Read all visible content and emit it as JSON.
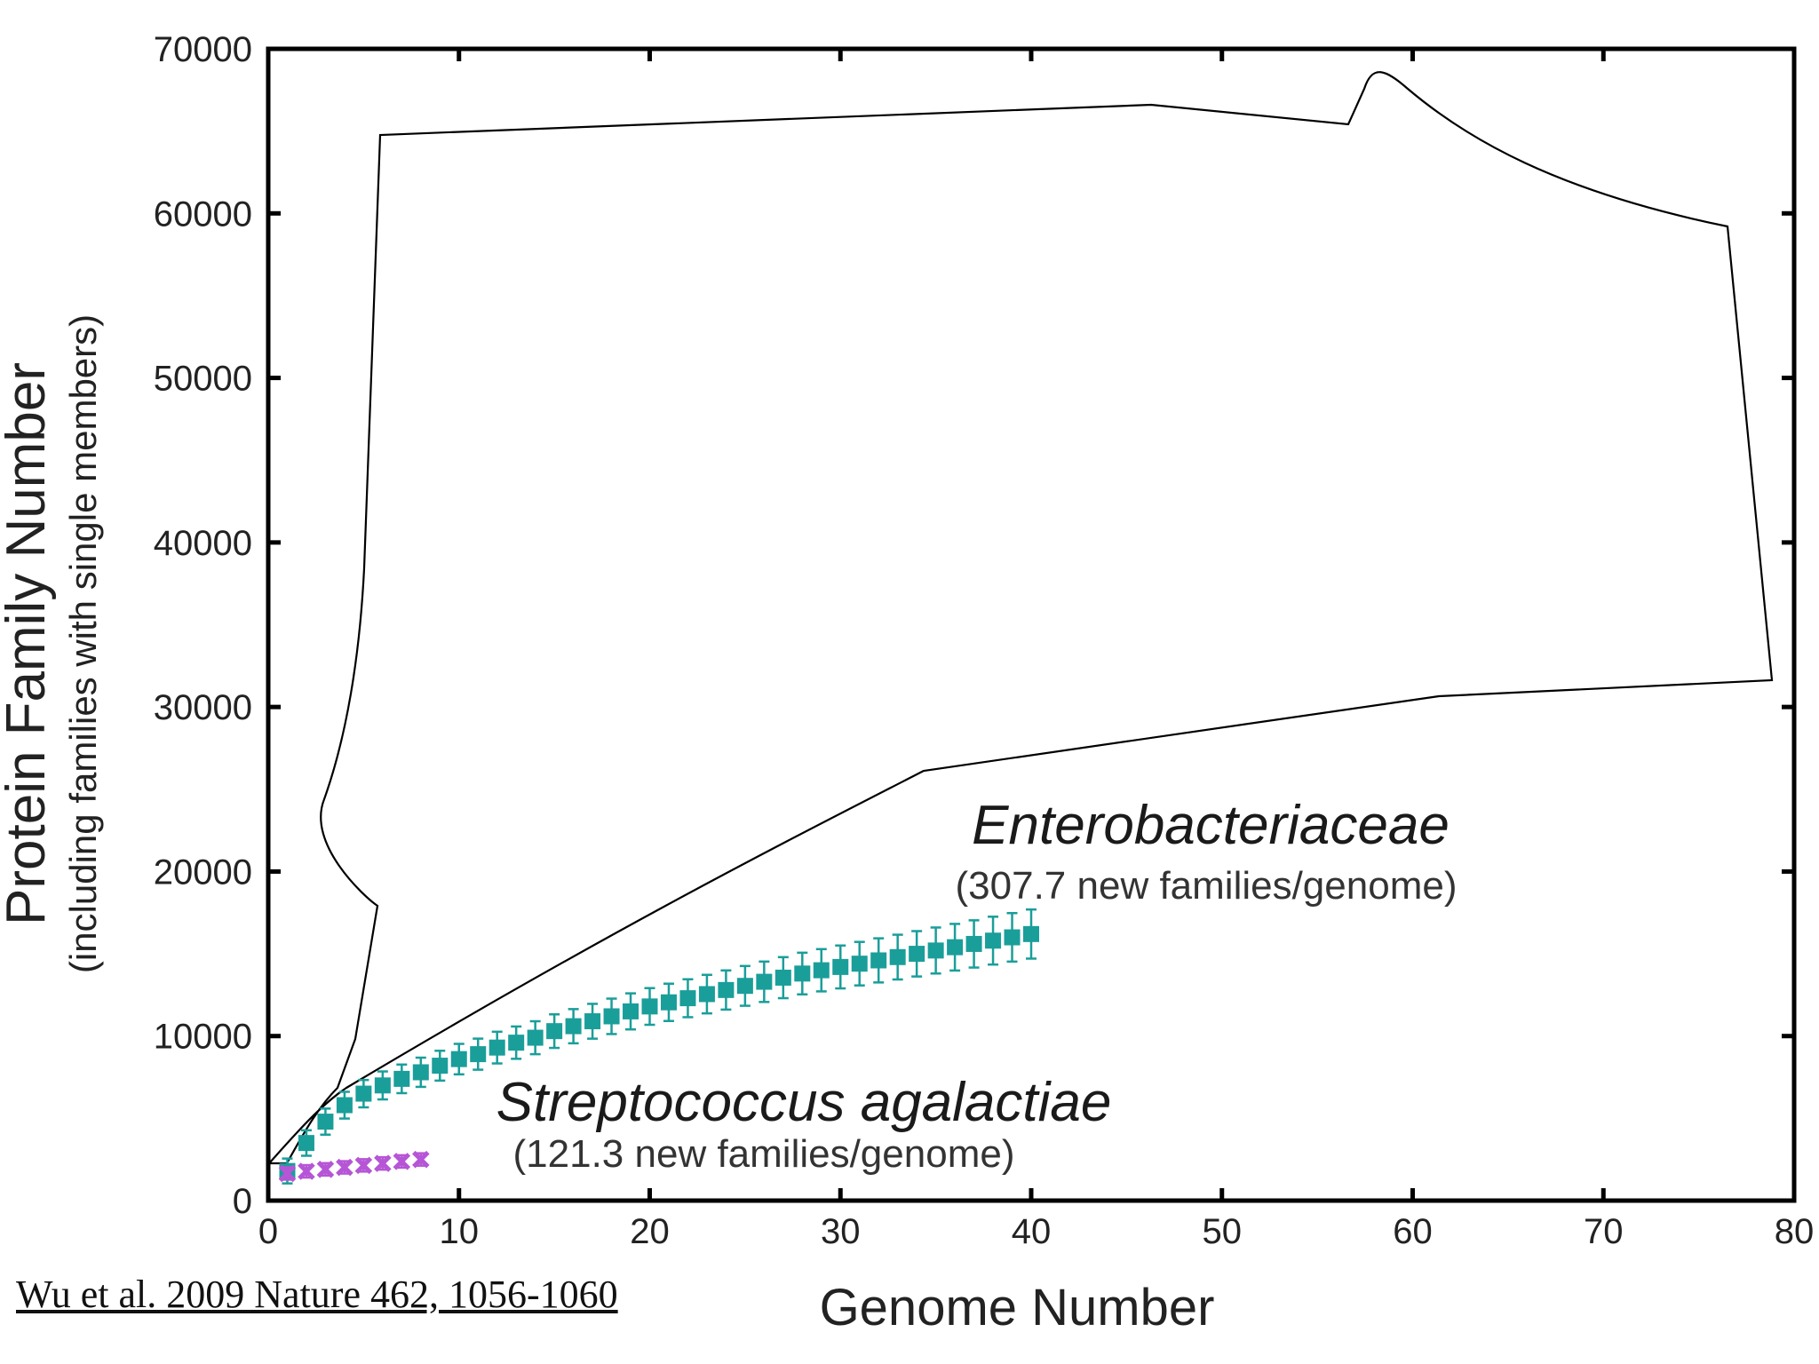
{
  "chart_data": {
    "type": "scatter",
    "title": "",
    "xlabel": "Genome Number",
    "ylabel": "Protein Family Number",
    "ylabel_sub": "(including families with single members)",
    "xlim": [
      0,
      80
    ],
    "ylim": [
      0,
      70000
    ],
    "xticks": [
      0,
      10,
      20,
      30,
      40,
      50,
      60,
      70,
      80
    ],
    "yticks": [
      0,
      10000,
      20000,
      30000,
      40000,
      50000,
      60000,
      70000
    ],
    "grid": false,
    "series": [
      {
        "name": "Enterobacteriaceae",
        "annotation": "(307.7 new families/genome)",
        "color": "#1a9e9a",
        "marker": "square",
        "x": [
          1,
          2,
          3,
          4,
          5,
          6,
          7,
          8,
          9,
          10,
          11,
          12,
          13,
          14,
          15,
          16,
          17,
          18,
          19,
          20,
          21,
          22,
          23,
          24,
          25,
          26,
          27,
          28,
          29,
          30,
          31,
          32,
          33,
          34,
          35,
          36,
          37,
          38,
          39,
          40
        ],
        "y": [
          1800,
          3500,
          4800,
          5800,
          6500,
          7000,
          7400,
          7800,
          8200,
          8600,
          8900,
          9300,
          9600,
          9900,
          10300,
          10600,
          10900,
          11200,
          11500,
          11800,
          12050,
          12300,
          12550,
          12800,
          13050,
          13300,
          13550,
          13800,
          14000,
          14200,
          14400,
          14600,
          14800,
          15000,
          15200,
          15400,
          15600,
          15800,
          16000,
          16200
        ]
      },
      {
        "name": "Streptococcus agalactiae",
        "annotation": "(121.3 new families/genome)",
        "color": "#b655d6",
        "marker": "x",
        "x": [
          1,
          2,
          3,
          4,
          5,
          6,
          7,
          8
        ],
        "y": [
          1650,
          1780,
          1900,
          2020,
          2140,
          2260,
          2380,
          2500
        ]
      }
    ],
    "outline_color": "#000000"
  },
  "citation": "Wu et al. 2009 Nature 462, 1056-1060"
}
